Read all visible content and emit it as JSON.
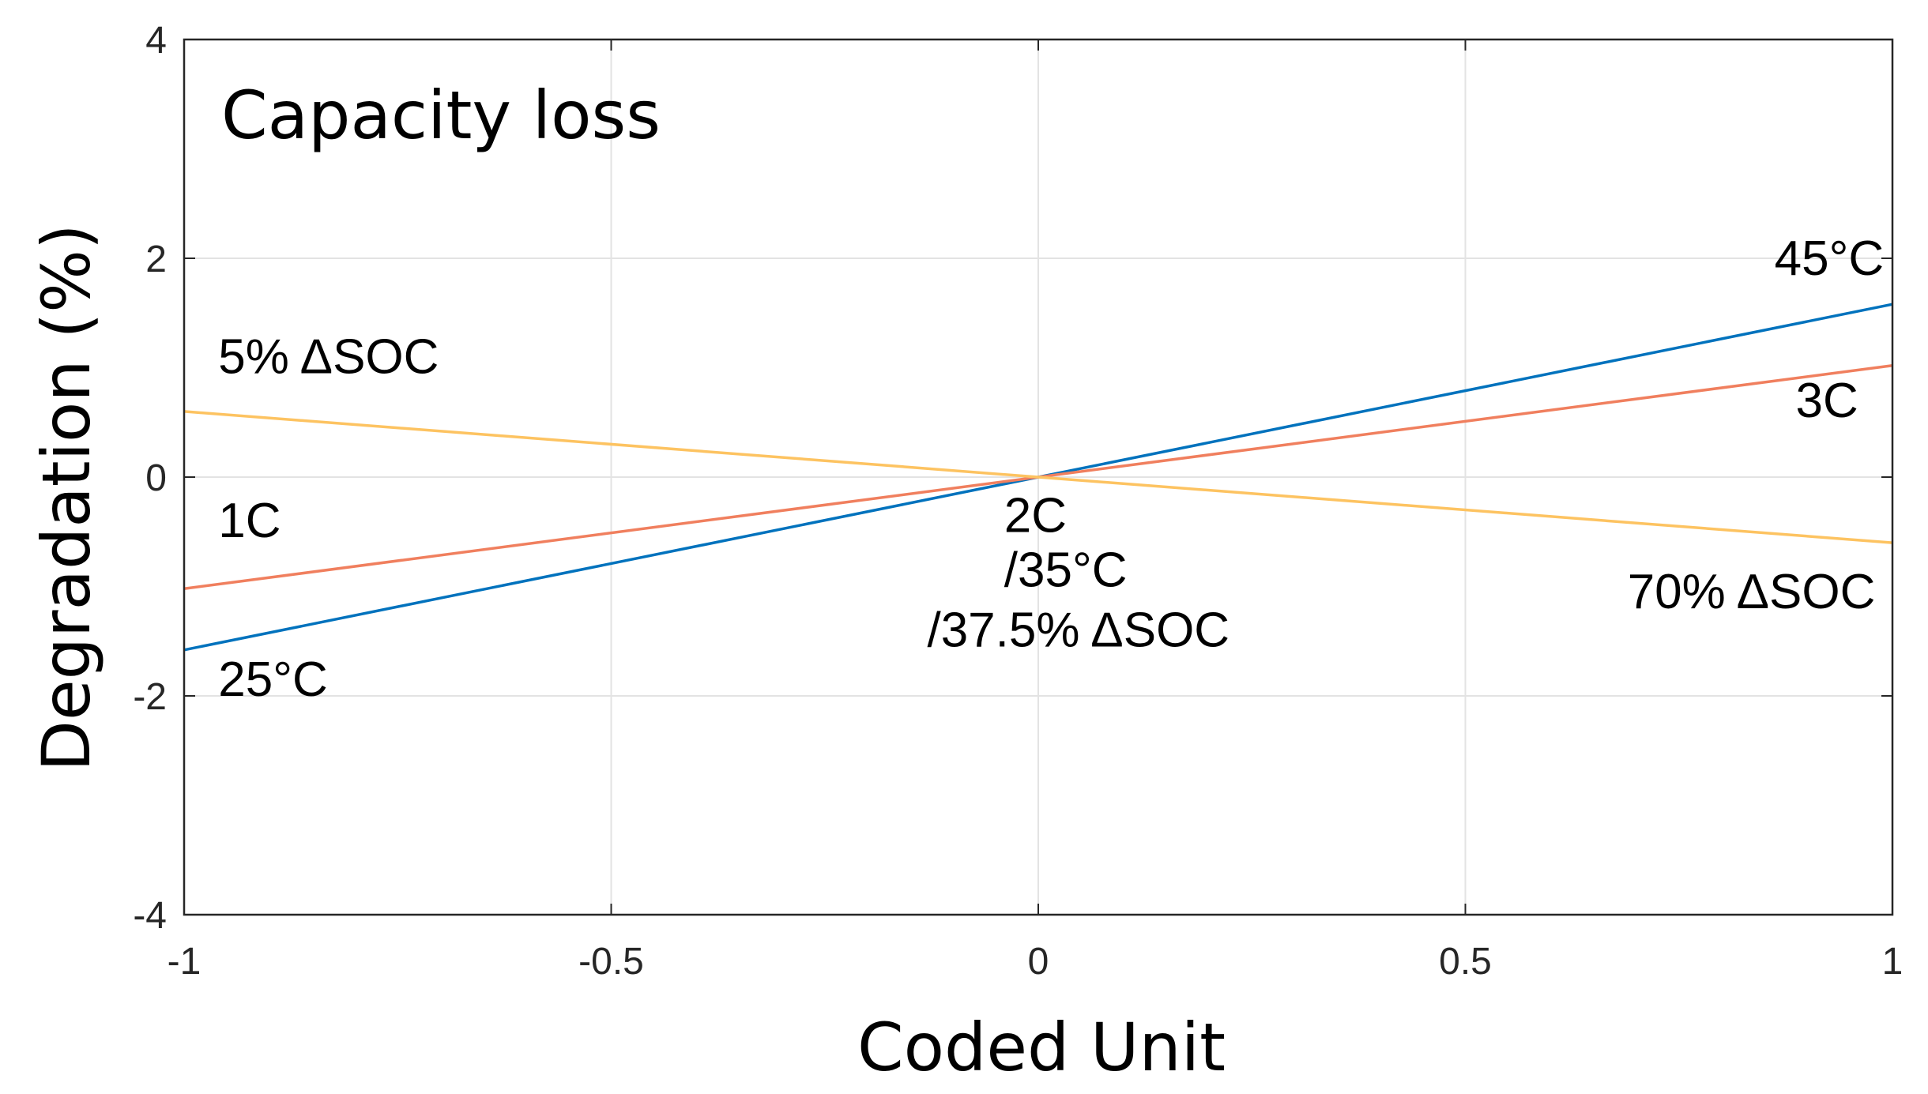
{
  "chart_data": {
    "type": "line",
    "title": "Capacity loss",
    "xlabel": "Coded Unit",
    "ylabel": "Degradation (%)",
    "xlim": [
      -1,
      1
    ],
    "ylim": [
      -4,
      4
    ],
    "xticks": [
      -1,
      -0.5,
      0,
      0.5,
      1
    ],
    "xtick_labels": [
      "-1",
      "-0.5",
      "0",
      "0.5",
      "1"
    ],
    "yticks": [
      -4,
      -2,
      0,
      2,
      4
    ],
    "ytick_labels": [
      "-4",
      "-2",
      "0",
      "2",
      "4"
    ],
    "grid": true,
    "series": [
      {
        "color": "#0072BD",
        "x": [
          -1,
          1
        ],
        "y": [
          -1.58,
          1.58
        ]
      },
      {
        "color": "#F07F5E",
        "x": [
          -1,
          1
        ],
        "y": [
          -1.02,
          1.02
        ]
      },
      {
        "color": "#FDC361",
        "x": [
          -1,
          1
        ],
        "y": [
          0.6,
          -0.6
        ]
      }
    ],
    "annotations": [
      {
        "text": "45°C",
        "x": 0.99,
        "y": 1.85,
        "anchor": "end"
      },
      {
        "text": "3C",
        "x": 0.96,
        "y": 0.55,
        "anchor": "end"
      },
      {
        "text": "5% ΔSOC",
        "x": -0.96,
        "y": 0.95,
        "anchor": "start"
      },
      {
        "text": "1C",
        "x": -0.96,
        "y": -0.55,
        "anchor": "start"
      },
      {
        "text": "25°C",
        "x": -0.96,
        "y": -2.0,
        "anchor": "start"
      },
      {
        "text": "2C",
        "x": -0.04,
        "y": -0.5,
        "anchor": "start"
      },
      {
        "text": "/35°C",
        "x": -0.04,
        "y": -1.0,
        "anchor": "start"
      },
      {
        "text": "/37.5% ΔSOC",
        "x": -0.13,
        "y": -1.55,
        "anchor": "start"
      },
      {
        "text": "70% ΔSOC",
        "x": 0.98,
        "y": -1.2,
        "anchor": "end"
      }
    ]
  }
}
